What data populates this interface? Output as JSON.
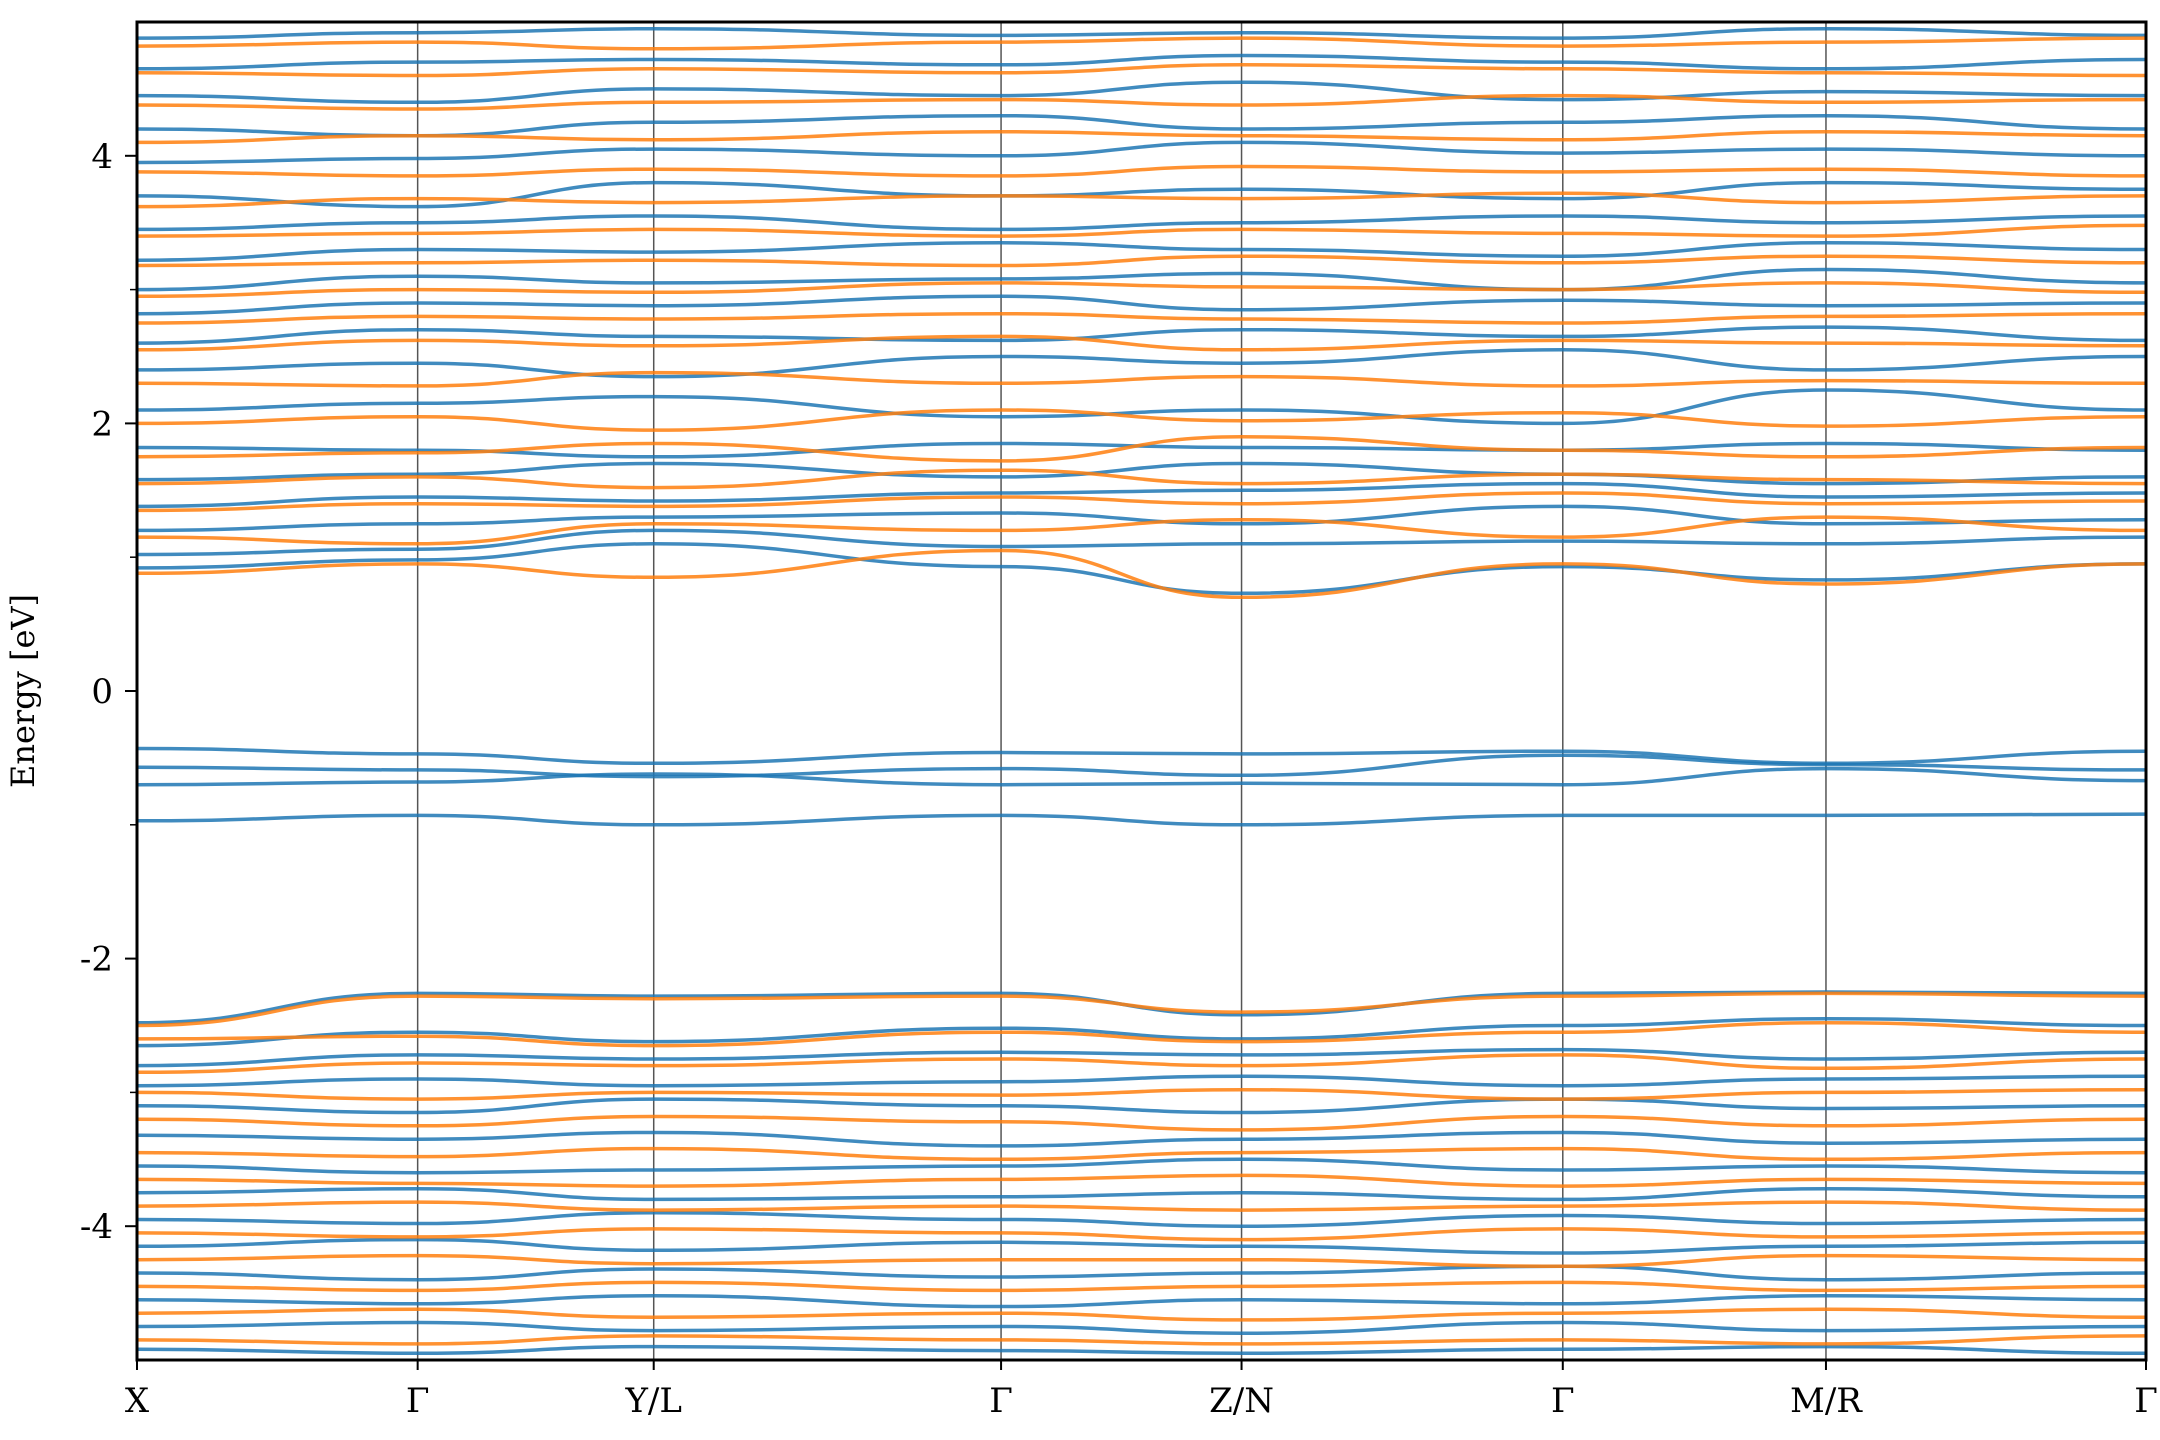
{
  "chart_data": {
    "type": "line",
    "title": "",
    "xlabel": "",
    "ylabel": "Energy [eV]",
    "ylim": [
      -5,
      5
    ],
    "y_ticks": [
      {
        "value": 4,
        "label": "4"
      },
      {
        "value": 2,
        "label": "2"
      },
      {
        "value": 0,
        "label": "0"
      },
      {
        "value": -2,
        "label": "-2"
      },
      {
        "value": -4,
        "label": "-4"
      }
    ],
    "y_minor_ticks": [
      3,
      1,
      -1,
      -3
    ],
    "k_path": [
      {
        "label": "X",
        "pos": 0.0
      },
      {
        "label": "Γ",
        "pos": 0.1397
      },
      {
        "label": "Y/L",
        "pos": 0.2572
      },
      {
        "label": "Γ",
        "pos": 0.4301
      },
      {
        "label": "Z/N",
        "pos": 0.5498
      },
      {
        "label": "Γ",
        "pos": 0.7097
      },
      {
        "label": "M/R",
        "pos": 0.8407
      },
      {
        "label": "Γ",
        "pos": 1.0
      }
    ],
    "grid": "vertical lines at high-symmetry points",
    "colors": {
      "spin_up": "#1f77b4",
      "spin_down": "#ff7f0e"
    },
    "series": [
      {
        "values": [
          -0.43,
          -0.47,
          -0.54,
          -0.46,
          -0.47,
          -0.45,
          -0.54,
          -0.45
        ]
      },
      {
        "values": [
          -0.57,
          -0.59,
          -0.64,
          -0.58,
          -0.63,
          -0.48,
          -0.55,
          -0.59
        ]
      },
      {
        "values": [
          -0.7,
          -0.68,
          -0.62,
          -0.7,
          -0.69,
          -0.7,
          -0.58,
          -0.67
        ]
      },
      {
        "values": [
          -0.97,
          -0.93,
          -1.0,
          -0.93,
          -1.0,
          -0.93,
          -0.93,
          -0.92
        ]
      },
      {
        "values": [
          0.92,
          0.98,
          1.1,
          0.93,
          0.73,
          0.93,
          0.83,
          0.95
        ]
      },
      {
        "values": [
          1.02,
          1.06,
          1.2,
          1.08,
          1.1,
          1.12,
          1.1,
          1.15
        ]
      },
      {
        "values": [
          1.2,
          1.25,
          1.3,
          1.33,
          1.25,
          1.38,
          1.25,
          1.28
        ]
      },
      {
        "values": [
          1.38,
          1.45,
          1.42,
          1.48,
          1.5,
          1.55,
          1.45,
          1.48
        ]
      },
      {
        "values": [
          1.58,
          1.62,
          1.7,
          1.6,
          1.7,
          1.62,
          1.55,
          1.6
        ]
      },
      {
        "values": [
          1.82,
          1.8,
          1.75,
          1.85,
          1.82,
          1.8,
          1.85,
          1.8
        ]
      },
      {
        "values": [
          2.1,
          2.15,
          2.2,
          2.05,
          2.1,
          2.0,
          2.25,
          2.1
        ]
      },
      {
        "values": [
          2.4,
          2.45,
          2.35,
          2.5,
          2.45,
          2.55,
          2.4,
          2.5
        ]
      },
      {
        "values": [
          2.6,
          2.7,
          2.65,
          2.62,
          2.7,
          2.65,
          2.72,
          2.62
        ]
      },
      {
        "values": [
          2.82,
          2.9,
          2.88,
          2.95,
          2.85,
          2.92,
          2.88,
          2.9
        ]
      },
      {
        "values": [
          3.0,
          3.1,
          3.05,
          3.08,
          3.12,
          3.0,
          3.15,
          3.05
        ]
      },
      {
        "values": [
          3.22,
          3.3,
          3.28,
          3.35,
          3.3,
          3.25,
          3.35,
          3.3
        ]
      },
      {
        "values": [
          3.45,
          3.5,
          3.55,
          3.45,
          3.5,
          3.55,
          3.5,
          3.55
        ]
      },
      {
        "values": [
          3.7,
          3.62,
          3.8,
          3.7,
          3.75,
          3.68,
          3.8,
          3.75
        ]
      },
      {
        "values": [
          3.95,
          3.98,
          4.05,
          4.0,
          4.1,
          4.02,
          4.05,
          4.0
        ]
      },
      {
        "values": [
          4.2,
          4.15,
          4.25,
          4.3,
          4.2,
          4.25,
          4.3,
          4.2
        ]
      },
      {
        "values": [
          4.45,
          4.4,
          4.5,
          4.45,
          4.55,
          4.42,
          4.48,
          4.45
        ]
      },
      {
        "values": [
          4.65,
          4.7,
          4.72,
          4.68,
          4.75,
          4.7,
          4.65,
          4.72
        ]
      },
      {
        "values": [
          4.88,
          4.92,
          4.95,
          4.9,
          4.92,
          4.88,
          4.95,
          4.9
        ]
      },
      {
        "values": [
          -2.48,
          -2.26,
          -2.28,
          -2.26,
          -2.42,
          -2.26,
          -2.25,
          -2.26
        ]
      },
      {
        "values": [
          -2.65,
          -2.55,
          -2.62,
          -2.52,
          -2.6,
          -2.5,
          -2.45,
          -2.5
        ]
      },
      {
        "values": [
          -2.8,
          -2.72,
          -2.75,
          -2.7,
          -2.72,
          -2.68,
          -2.75,
          -2.7
        ]
      },
      {
        "values": [
          -2.95,
          -2.9,
          -2.95,
          -2.92,
          -2.88,
          -2.95,
          -2.9,
          -2.88
        ]
      },
      {
        "values": [
          -3.1,
          -3.15,
          -3.05,
          -3.1,
          -3.15,
          -3.05,
          -3.12,
          -3.1
        ]
      },
      {
        "values": [
          -3.32,
          -3.35,
          -3.3,
          -3.4,
          -3.35,
          -3.3,
          -3.38,
          -3.35
        ]
      },
      {
        "values": [
          -3.55,
          -3.6,
          -3.58,
          -3.55,
          -3.5,
          -3.58,
          -3.55,
          -3.6
        ]
      },
      {
        "values": [
          -3.75,
          -3.72,
          -3.8,
          -3.78,
          -3.75,
          -3.8,
          -3.72,
          -3.78
        ]
      },
      {
        "values": [
          -3.95,
          -3.98,
          -3.9,
          -3.95,
          -4.0,
          -3.92,
          -3.98,
          -3.95
        ]
      },
      {
        "values": [
          -4.15,
          -4.1,
          -4.18,
          -4.12,
          -4.15,
          -4.2,
          -4.15,
          -4.12
        ]
      },
      {
        "values": [
          -4.35,
          -4.4,
          -4.32,
          -4.38,
          -4.35,
          -4.3,
          -4.4,
          -4.35
        ]
      },
      {
        "values": [
          -4.55,
          -4.58,
          -4.52,
          -4.6,
          -4.55,
          -4.58,
          -4.52,
          -4.55
        ]
      },
      {
        "values": [
          -4.75,
          -4.72,
          -4.78,
          -4.75,
          -4.8,
          -4.72,
          -4.78,
          -4.75
        ]
      },
      {
        "values": [
          -4.92,
          -4.95,
          -4.9,
          -4.93,
          -4.95,
          -4.92,
          -4.9,
          -4.95
        ]
      },
      {
        "values": [
          0.88,
          0.95,
          0.85,
          1.05,
          0.7,
          0.95,
          0.8,
          0.95
        ]
      },
      {
        "values": [
          1.15,
          1.1,
          1.25,
          1.2,
          1.28,
          1.15,
          1.3,
          1.2
        ]
      },
      {
        "values": [
          1.35,
          1.4,
          1.38,
          1.45,
          1.4,
          1.48,
          1.4,
          1.42
        ]
      },
      {
        "values": [
          1.55,
          1.6,
          1.52,
          1.65,
          1.55,
          1.62,
          1.58,
          1.55
        ]
      },
      {
        "values": [
          1.75,
          1.78,
          1.85,
          1.72,
          1.9,
          1.8,
          1.75,
          1.82
        ]
      },
      {
        "values": [
          2.0,
          2.05,
          1.95,
          2.1,
          2.02,
          2.08,
          1.98,
          2.05
        ]
      },
      {
        "values": [
          2.3,
          2.28,
          2.38,
          2.3,
          2.35,
          2.28,
          2.32,
          2.3
        ]
      },
      {
        "values": [
          2.55,
          2.62,
          2.58,
          2.65,
          2.55,
          2.62,
          2.6,
          2.58
        ]
      },
      {
        "values": [
          2.75,
          2.8,
          2.78,
          2.82,
          2.78,
          2.75,
          2.8,
          2.82
        ]
      },
      {
        "values": [
          2.95,
          3.0,
          2.98,
          3.05,
          3.02,
          3.0,
          3.05,
          2.98
        ]
      },
      {
        "values": [
          3.18,
          3.2,
          3.22,
          3.18,
          3.25,
          3.2,
          3.25,
          3.2
        ]
      },
      {
        "values": [
          3.4,
          3.42,
          3.45,
          3.4,
          3.45,
          3.42,
          3.4,
          3.48
        ]
      },
      {
        "values": [
          3.62,
          3.68,
          3.65,
          3.7,
          3.68,
          3.72,
          3.65,
          3.7
        ]
      },
      {
        "values": [
          3.88,
          3.85,
          3.9,
          3.85,
          3.92,
          3.88,
          3.9,
          3.85
        ]
      },
      {
        "values": [
          4.1,
          4.15,
          4.12,
          4.18,
          4.15,
          4.12,
          4.18,
          4.15
        ]
      },
      {
        "values": [
          4.38,
          4.35,
          4.4,
          4.42,
          4.38,
          4.45,
          4.4,
          4.42
        ]
      },
      {
        "values": [
          4.62,
          4.6,
          4.65,
          4.62,
          4.68,
          4.65,
          4.62,
          4.6
        ]
      },
      {
        "values": [
          4.82,
          4.85,
          4.8,
          4.85,
          4.88,
          4.82,
          4.85,
          4.88
        ]
      },
      {
        "values": [
          -2.5,
          -2.28,
          -2.3,
          -2.28,
          -2.4,
          -2.28,
          -2.26,
          -2.28
        ]
      },
      {
        "values": [
          -2.6,
          -2.58,
          -2.65,
          -2.55,
          -2.62,
          -2.55,
          -2.48,
          -2.55
        ]
      },
      {
        "values": [
          -2.85,
          -2.78,
          -2.8,
          -2.75,
          -2.8,
          -2.72,
          -2.82,
          -2.75
        ]
      },
      {
        "values": [
          -3.0,
          -3.05,
          -3.0,
          -3.02,
          -2.98,
          -3.05,
          -3.0,
          -2.98
        ]
      },
      {
        "values": [
          -3.2,
          -3.25,
          -3.18,
          -3.22,
          -3.28,
          -3.18,
          -3.25,
          -3.2
        ]
      },
      {
        "values": [
          -3.45,
          -3.48,
          -3.42,
          -3.5,
          -3.45,
          -3.42,
          -3.5,
          -3.45
        ]
      },
      {
        "values": [
          -3.65,
          -3.68,
          -3.7,
          -3.65,
          -3.62,
          -3.7,
          -3.65,
          -3.68
        ]
      },
      {
        "values": [
          -3.85,
          -3.82,
          -3.88,
          -3.85,
          -3.88,
          -3.85,
          -3.82,
          -3.88
        ]
      },
      {
        "values": [
          -4.05,
          -4.08,
          -4.02,
          -4.05,
          -4.1,
          -4.02,
          -4.08,
          -4.05
        ]
      },
      {
        "values": [
          -4.25,
          -4.22,
          -4.28,
          -4.25,
          -4.25,
          -4.3,
          -4.22,
          -4.25
        ]
      },
      {
        "values": [
          -4.45,
          -4.48,
          -4.42,
          -4.48,
          -4.45,
          -4.42,
          -4.48,
          -4.45
        ]
      },
      {
        "values": [
          -4.65,
          -4.62,
          -4.68,
          -4.65,
          -4.7,
          -4.65,
          -4.62,
          -4.68
        ]
      },
      {
        "values": [
          -4.85,
          -4.88,
          -4.82,
          -4.85,
          -4.88,
          -4.85,
          -4.88,
          -4.82
        ]
      }
    ],
    "series_spin": [
      "up",
      "up",
      "up",
      "up",
      "up",
      "up",
      "up",
      "up",
      "up",
      "up",
      "up",
      "up",
      "up",
      "up",
      "up",
      "up",
      "up",
      "up",
      "up",
      "up",
      "up",
      "up",
      "up",
      "up",
      "up",
      "up",
      "up",
      "up",
      "up",
      "up",
      "up",
      "up",
      "up",
      "up",
      "up",
      "up",
      "up",
      "down",
      "down",
      "down",
      "down",
      "down",
      "down",
      "down",
      "down",
      "down",
      "down",
      "down",
      "down",
      "down",
      "down",
      "down",
      "down",
      "down",
      "down",
      "down",
      "down",
      "down",
      "down",
      "down",
      "down",
      "down",
      "down",
      "down",
      "down",
      "down",
      "down",
      "down"
    ]
  }
}
